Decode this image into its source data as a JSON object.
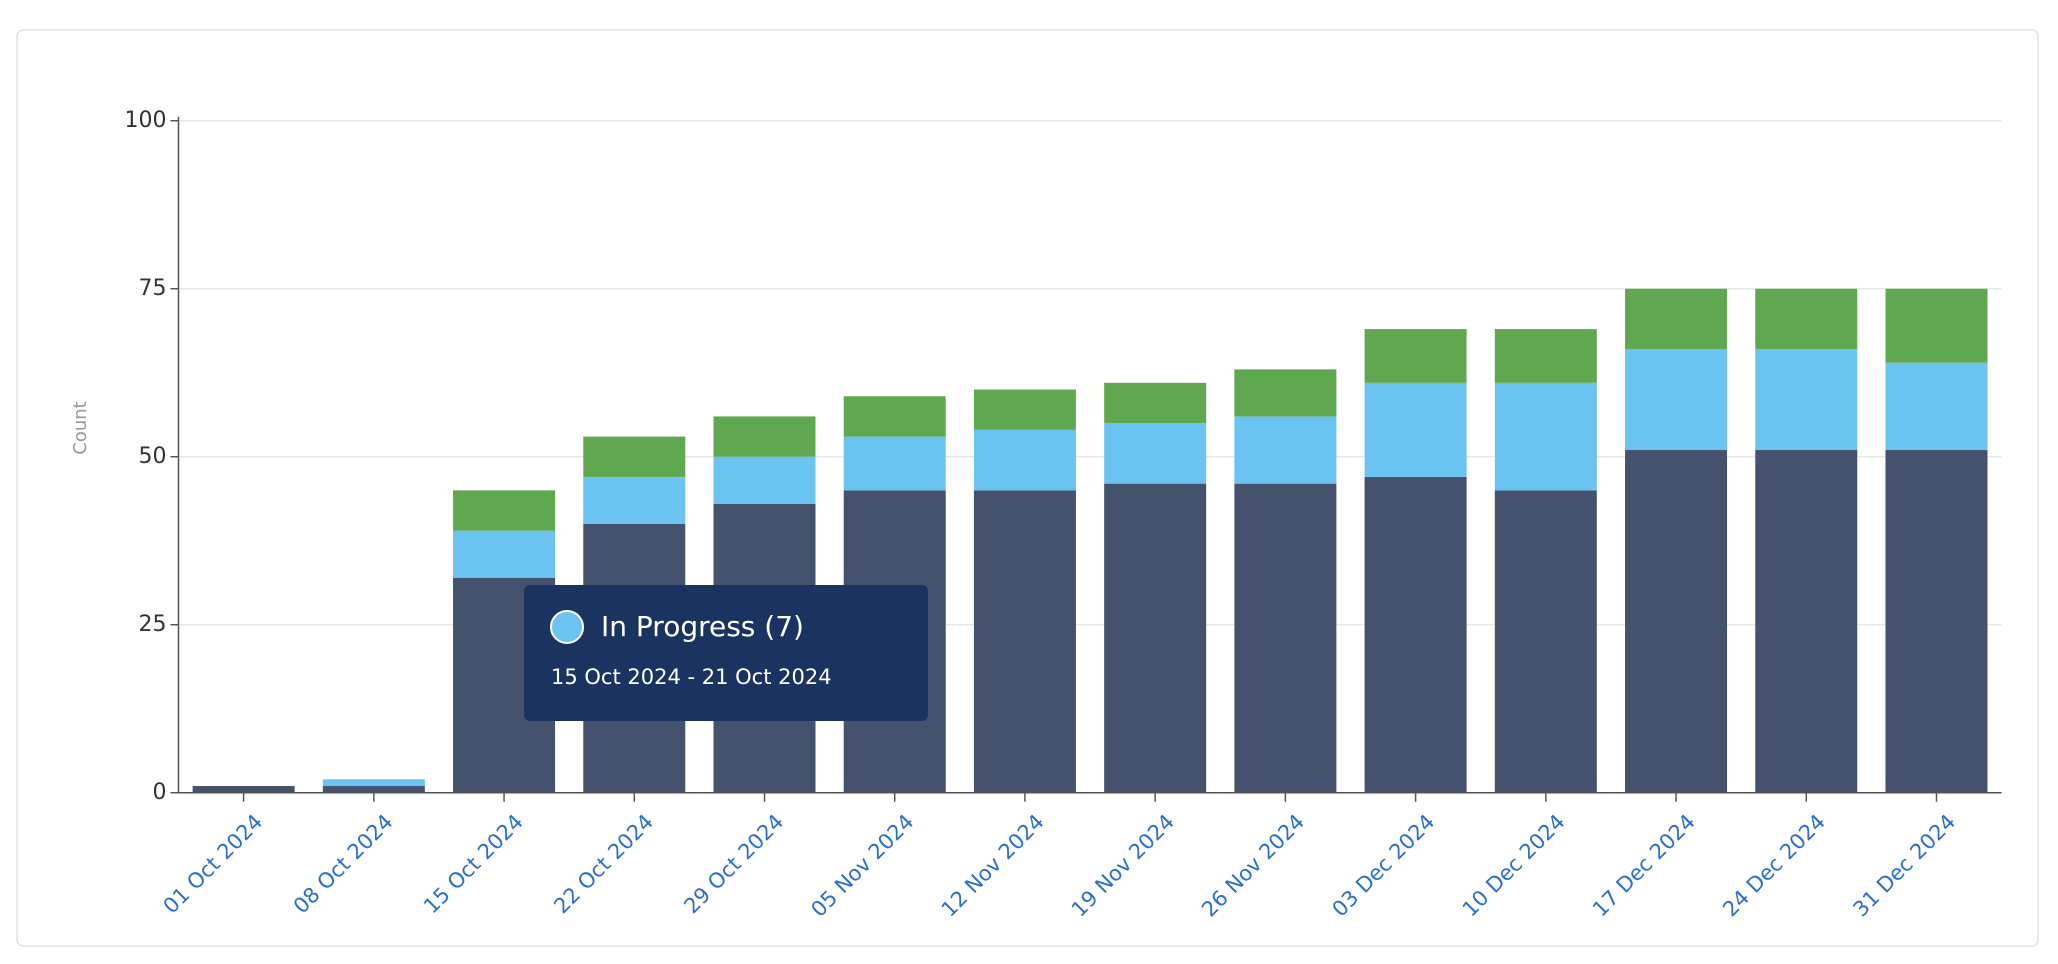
{
  "chart_data": {
    "type": "stacked-bar",
    "y_label": "Count",
    "categories": [
      "01 Oct 2024",
      "08 Oct 2024",
      "15 Oct 2024",
      "22 Oct 2024",
      "29 Oct 2024",
      "05 Nov 2024",
      "12 Nov 2024",
      "19 Nov 2024",
      "26 Nov 2024",
      "03 Dec 2024",
      "10 Dec 2024",
      "17 Dec 2024",
      "24 Dec 2024",
      "31 Dec 2024"
    ],
    "series": [
      {
        "color": "#44526e",
        "values": [
          1,
          1,
          32,
          40,
          43,
          45,
          45,
          46,
          46,
          47,
          45,
          51,
          51,
          51
        ]
      },
      {
        "name": "In Progress",
        "color": "#6ac3f0",
        "values": [
          0,
          1,
          7,
          7,
          7,
          8,
          9,
          9,
          10,
          14,
          16,
          15,
          15,
          13
        ]
      },
      {
        "color": "#5fa84f",
        "values": [
          0,
          0,
          6,
          6,
          6,
          6,
          6,
          6,
          7,
          8,
          8,
          9,
          9,
          11
        ]
      }
    ],
    "ylim": [
      0,
      100
    ],
    "yticks": [
      0,
      25,
      50,
      75,
      100
    ],
    "grid": true,
    "tooltip": {
      "label": "In Progress (7)",
      "range": "15 Oct 2024 - 21 Oct 2024"
    }
  }
}
